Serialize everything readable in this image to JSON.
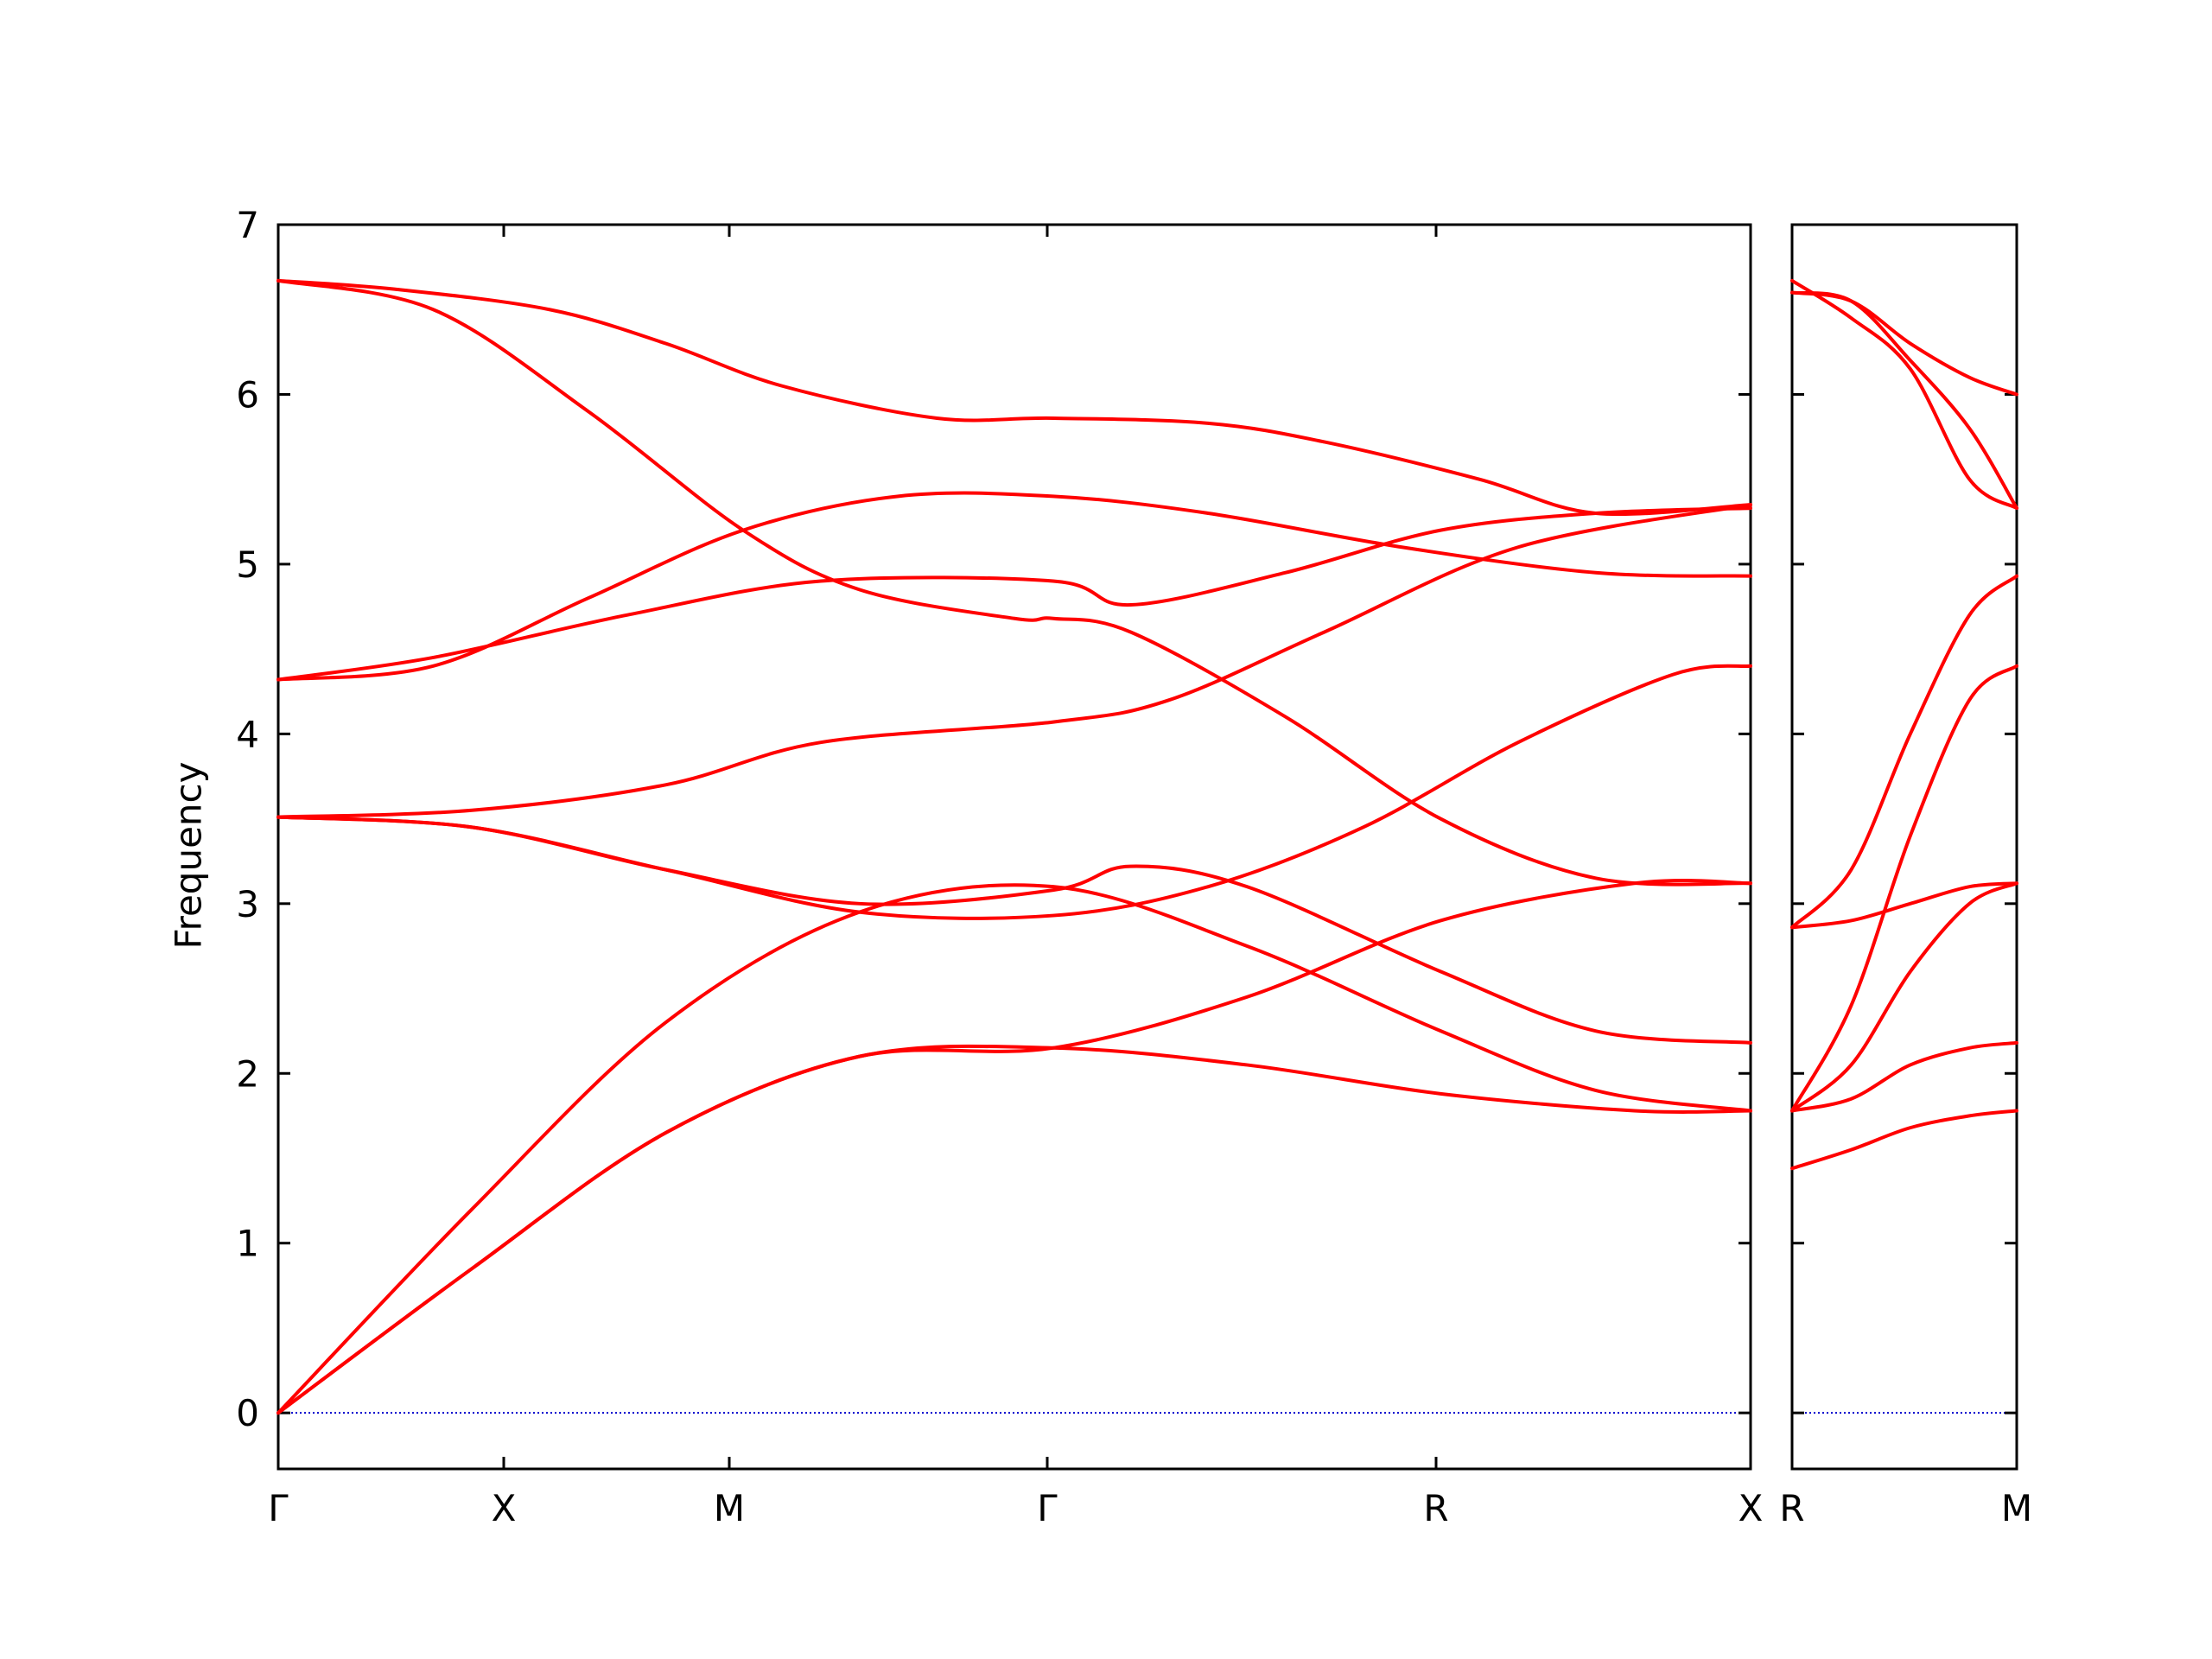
{
  "chart_data": {
    "type": "line",
    "title": "",
    "xlabel": "",
    "ylabel": "Frequency",
    "ylim": [
      -0.33,
      7
    ],
    "yticks": [
      "0",
      "1",
      "2",
      "3",
      "4",
      "5",
      "6",
      "7"
    ],
    "grid": false,
    "colors": {
      "bands": "#ff0000",
      "zero_line": "#0000cc",
      "axes": "#000000"
    },
    "panels": [
      {
        "xticks": [
          "Γ",
          "X",
          "M",
          "Γ",
          "R",
          "X"
        ],
        "series": [
          {
            "values": [
              [
                0,
                6.67
              ],
              [
                0.03,
                6.62
              ],
              [
                0.07,
                6.5
              ],
              [
                0.1,
                6.3
              ],
              [
                0.13,
                6.05
              ],
              [
                0.17,
                5.86
              ],
              [
                0.2,
                5.86
              ],
              [
                0.24,
                5.83
              ],
              [
                0.27,
                5.72
              ],
              [
                0.31,
                5.5
              ],
              [
                0.34,
                5.3
              ],
              [
                0.38,
                5.35
              ]
            ]
          },
          {
            "values": [
              [
                0,
                6.67
              ],
              [
                0.04,
                6.5
              ],
              [
                0.08,
                5.9
              ],
              [
                0.12,
                5.2
              ],
              [
                0.15,
                4.85
              ],
              [
                0.19,
                4.68
              ],
              [
                0.2,
                4.68
              ],
              [
                0.22,
                4.6
              ],
              [
                0.26,
                4.1
              ],
              [
                0.3,
                3.5
              ],
              [
                0.34,
                3.15
              ],
              [
                0.38,
                3.12
              ]
            ]
          },
          {
            "values": [
              [
                0,
                4.32
              ],
              [
                0.04,
                4.4
              ],
              [
                0.08,
                4.8
              ],
              [
                0.12,
                5.2
              ],
              [
                0.16,
                5.4
              ],
              [
                0.2,
                5.4
              ],
              [
                0.24,
                5.3
              ],
              [
                0.29,
                5.1
              ],
              [
                0.34,
                4.95
              ],
              [
                0.38,
                4.93
              ]
            ]
          },
          {
            "values": [
              [
                0,
                4.32
              ],
              [
                0.04,
                4.45
              ],
              [
                0.09,
                4.7
              ],
              [
                0.14,
                4.9
              ],
              [
                0.2,
                4.9
              ],
              [
                0.22,
                4.76
              ],
              [
                0.26,
                4.95
              ],
              [
                0.3,
                5.2
              ],
              [
                0.34,
                5.3
              ],
              [
                0.38,
                5.33
              ]
            ]
          },
          {
            "values": [
              [
                0,
                3.51
              ],
              [
                0.05,
                3.55
              ],
              [
                0.1,
                3.7
              ],
              [
                0.14,
                3.95
              ],
              [
                0.2,
                4.07
              ],
              [
                0.23,
                4.2
              ],
              [
                0.27,
                4.6
              ],
              [
                0.32,
                5.1
              ],
              [
                0.38,
                5.35
              ]
            ]
          },
          {
            "values": [
              [
                0,
                3.51
              ],
              [
                0.05,
                3.45
              ],
              [
                0.1,
                3.2
              ],
              [
                0.15,
                2.95
              ],
              [
                0.2,
                2.93
              ],
              [
                0.24,
                3.1
              ],
              [
                0.28,
                3.45
              ],
              [
                0.32,
                3.95
              ],
              [
                0.36,
                4.35
              ],
              [
                0.38,
                4.4
              ]
            ]
          },
          {
            "values": [
              [
                0,
                3.51
              ],
              [
                0.05,
                3.45
              ],
              [
                0.1,
                3.2
              ],
              [
                0.15,
                3.0
              ],
              [
                0.2,
                3.08
              ],
              [
                0.22,
                3.22
              ],
              [
                0.25,
                3.1
              ],
              [
                0.3,
                2.6
              ],
              [
                0.34,
                2.25
              ],
              [
                0.38,
                2.18
              ]
            ]
          },
          {
            "values": [
              [
                0,
                0
              ],
              [
                0.05,
                1.2
              ],
              [
                0.1,
                2.3
              ],
              [
                0.15,
                2.95
              ],
              [
                0.2,
                3.1
              ],
              [
                0.25,
                2.75
              ],
              [
                0.3,
                2.25
              ],
              [
                0.34,
                1.9
              ],
              [
                0.38,
                1.78
              ]
            ]
          },
          {
            "values": [
              [
                0,
                0
              ],
              [
                0.05,
                0.85
              ],
              [
                0.1,
                1.65
              ],
              [
                0.15,
                2.1
              ],
              [
                0.2,
                2.15
              ],
              [
                0.25,
                2.45
              ],
              [
                0.3,
                2.9
              ],
              [
                0.35,
                3.12
              ],
              [
                0.38,
                3.12
              ]
            ]
          },
          {
            "values": [
              [
                0,
                0
              ],
              [
                0.05,
                0.85
              ],
              [
                0.1,
                1.65
              ],
              [
                0.15,
                2.1
              ],
              [
                0.2,
                2.15
              ],
              [
                0.25,
                2.05
              ],
              [
                0.3,
                1.88
              ],
              [
                0.35,
                1.78
              ],
              [
                0.38,
                1.78
              ]
            ]
          }
        ]
      },
      {
        "xticks": [
          "R",
          "M"
        ],
        "series": [
          {
            "values": [
              [
                0,
                6.67
              ],
              [
                0.1,
                6.45
              ],
              [
                0.2,
                6.15
              ],
              [
                0.3,
                5.5
              ],
              [
                0.38,
                5.33
              ]
            ]
          },
          {
            "values": [
              [
                0,
                6.6
              ],
              [
                0.1,
                6.55
              ],
              [
                0.2,
                6.2
              ],
              [
                0.3,
                5.8
              ],
              [
                0.38,
                5.33
              ]
            ]
          },
          {
            "values": [
              [
                0,
                6.6
              ],
              [
                0.1,
                6.55
              ],
              [
                0.2,
                6.3
              ],
              [
                0.3,
                6.1
              ],
              [
                0.38,
                6.0
              ]
            ]
          },
          {
            "values": [
              [
                0,
                2.86
              ],
              [
                0.1,
                3.2
              ],
              [
                0.2,
                4.0
              ],
              [
                0.3,
                4.7
              ],
              [
                0.38,
                4.93
              ]
            ]
          },
          {
            "values": [
              [
                0,
                1.78
              ],
              [
                0.1,
                2.4
              ],
              [
                0.2,
                3.4
              ],
              [
                0.3,
                4.2
              ],
              [
                0.38,
                4.4
              ]
            ]
          },
          {
            "values": [
              [
                0,
                2.86
              ],
              [
                0.1,
                2.9
              ],
              [
                0.2,
                3.0
              ],
              [
                0.3,
                3.1
              ],
              [
                0.38,
                3.12
              ]
            ]
          },
          {
            "values": [
              [
                0,
                1.78
              ],
              [
                0.1,
                2.05
              ],
              [
                0.2,
                2.6
              ],
              [
                0.3,
                3.0
              ],
              [
                0.38,
                3.12
              ]
            ]
          },
          {
            "values": [
              [
                0,
                1.78
              ],
              [
                0.1,
                1.85
              ],
              [
                0.2,
                2.05
              ],
              [
                0.3,
                2.15
              ],
              [
                0.38,
                2.18
              ]
            ]
          },
          {
            "values": [
              [
                0,
                1.44
              ],
              [
                0.1,
                1.55
              ],
              [
                0.2,
                1.68
              ],
              [
                0.3,
                1.75
              ],
              [
                0.38,
                1.78
              ]
            ]
          }
        ]
      }
    ]
  }
}
